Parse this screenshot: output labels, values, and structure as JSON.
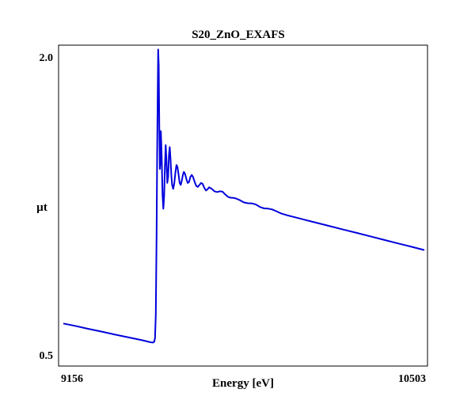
{
  "chart_data": {
    "type": "line",
    "title": "S20_ZnO_EXAFS",
    "xlabel": "Energy [eV]",
    "ylabel": "µt",
    "xlim": [
      9156,
      10503
    ],
    "ylim": [
      0.5,
      2.0
    ],
    "x_tick_labels": [
      "9156",
      "10503"
    ],
    "y_tick_labels": [
      "2.0",
      "0.5"
    ],
    "grid": false,
    "line_color": "#0000dd",
    "series": [
      {
        "name": "S20_ZnO_EXAFS",
        "x": [
          9156,
          9200,
          9250,
          9300,
          9350,
          9400,
          9450,
          9480,
          9490,
          9495,
          9498,
          9501,
          9504,
          9506,
          9508,
          9510,
          9512,
          9514,
          9516,
          9518,
          9520,
          9523,
          9526,
          9529,
          9532,
          9535,
          9538,
          9541,
          9544,
          9547,
          9550,
          9553,
          9556,
          9559,
          9562,
          9566,
          9570,
          9574,
          9578,
          9582,
          9586,
          9590,
          9594,
          9598,
          9602,
          9606,
          9610,
          9615,
          9620,
          9625,
          9630,
          9635,
          9640,
          9646,
          9652,
          9658,
          9664,
          9670,
          9676,
          9682,
          9688,
          9694,
          9700,
          9710,
          9720,
          9730,
          9740,
          9750,
          9760,
          9770,
          9780,
          9790,
          9800,
          9815,
          9830,
          9845,
          9860,
          9875,
          9890,
          9905,
          9920,
          9935,
          9950,
          9970,
          9990,
          10010,
          10050,
          10100,
          10150,
          10200,
          10250,
          10300,
          10350,
          10400,
          10450,
          10503
        ],
        "y": [
          0.654,
          0.642,
          0.627,
          0.613,
          0.598,
          0.584,
          0.57,
          0.56,
          0.558,
          0.562,
          0.58,
          0.7,
          1.1,
          1.5,
          1.8,
          2.03,
          1.95,
          1.65,
          1.43,
          1.46,
          1.62,
          1.5,
          1.3,
          1.23,
          1.29,
          1.44,
          1.55,
          1.47,
          1.36,
          1.39,
          1.5,
          1.54,
          1.48,
          1.4,
          1.35,
          1.33,
          1.36,
          1.41,
          1.45,
          1.44,
          1.4,
          1.36,
          1.35,
          1.37,
          1.4,
          1.415,
          1.405,
          1.38,
          1.36,
          1.365,
          1.39,
          1.4,
          1.39,
          1.365,
          1.345,
          1.34,
          1.35,
          1.36,
          1.355,
          1.335,
          1.322,
          1.328,
          1.338,
          1.33,
          1.318,
          1.314,
          1.318,
          1.316,
          1.302,
          1.29,
          1.286,
          1.285,
          1.282,
          1.273,
          1.262,
          1.258,
          1.257,
          1.251,
          1.239,
          1.232,
          1.231,
          1.227,
          1.218,
          1.206,
          1.198,
          1.191,
          1.177,
          1.16,
          1.143,
          1.126,
          1.109,
          1.092,
          1.075,
          1.058,
          1.041,
          1.023
        ]
      }
    ]
  }
}
